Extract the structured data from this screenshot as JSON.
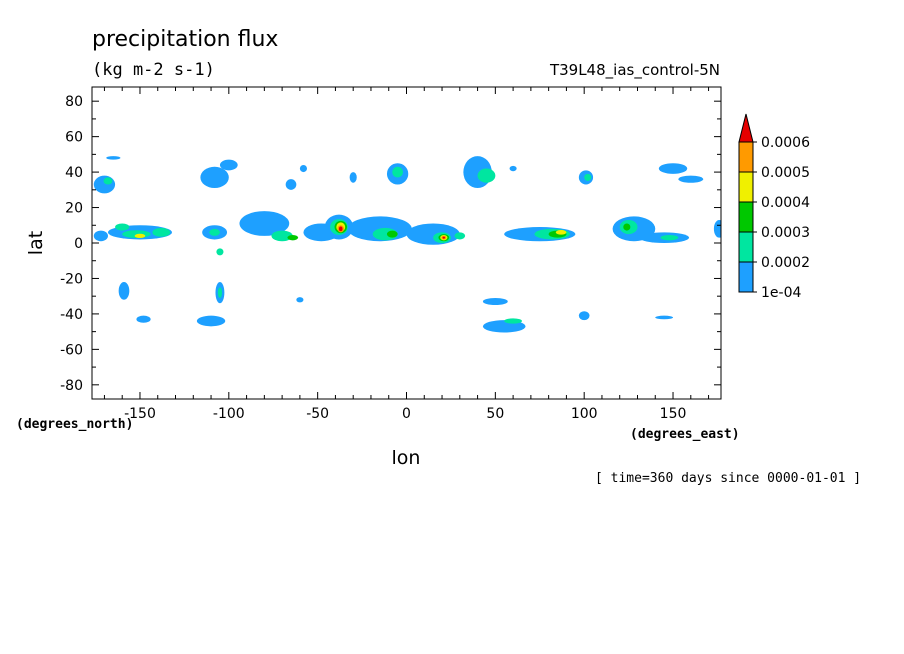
{
  "chart_data": {
    "type": "heatmap",
    "title": "precipitation flux",
    "units": "(kg m-2 s-1)",
    "dataset": "T39L48_ias_control-5N",
    "xlabel": "lon",
    "ylabel": "lat",
    "x_units_label": "(degrees_east)",
    "y_units_label": "(degrees_north)",
    "time_label": "[ time=360 days since 0000-01-01 ]",
    "xlim": [
      -177,
      177
    ],
    "ylim": [
      -88,
      88
    ],
    "x_ticks": [
      -150,
      -100,
      -50,
      0,
      50,
      100,
      150
    ],
    "x_tick_labels": [
      "-150",
      "-100",
      "-50",
      "0",
      "50",
      "100",
      "150"
    ],
    "y_ticks": [
      -80,
      -60,
      -40,
      -20,
      0,
      20,
      40,
      60,
      80
    ],
    "y_tick_labels": [
      "-80",
      "-60",
      "-40",
      "-20",
      "0",
      "20",
      "40",
      "60",
      "80"
    ],
    "colorbar": {
      "levels": [
        0.0001,
        0.0002,
        0.0003,
        0.0004,
        0.0005,
        0.0006
      ],
      "labels": [
        "1e-04",
        "0.0002",
        "0.0003",
        "0.0004",
        "0.0005",
        "0.0006"
      ],
      "colors": [
        "#1ea0ff",
        "#00e6a0",
        "#00c800",
        "#f0f000",
        "#ff9a00",
        "#e60000"
      ]
    },
    "regions": [
      {
        "lon": -172,
        "lat": 4,
        "rx": 4,
        "ry": 3,
        "level": 0
      },
      {
        "lon": -150,
        "lat": 6,
        "rx": 18,
        "ry": 4,
        "level": 0
      },
      {
        "lon": -152,
        "lat": 5,
        "rx": 8,
        "ry": 2.2,
        "level": 1
      },
      {
        "lon": -150,
        "lat": 4,
        "rx": 3,
        "ry": 1.2,
        "level": 3
      },
      {
        "lon": -160,
        "lat": 9,
        "rx": 4,
        "ry": 2,
        "level": 1
      },
      {
        "lon": -138,
        "lat": 6,
        "rx": 5,
        "ry": 2.5,
        "level": 1
      },
      {
        "lon": -108,
        "lat": 6,
        "rx": 7,
        "ry": 4,
        "level": 0
      },
      {
        "lon": -108,
        "lat": 6,
        "rx": 3,
        "ry": 2,
        "level": 1
      },
      {
        "lon": -105,
        "lat": -5,
        "rx": 2,
        "ry": 2,
        "level": 1
      },
      {
        "lon": -80,
        "lat": 11,
        "rx": 14,
        "ry": 7,
        "level": 0
      },
      {
        "lon": -70,
        "lat": 4,
        "rx": 6,
        "ry": 3,
        "level": 1
      },
      {
        "lon": -64,
        "lat": 3,
        "rx": 3,
        "ry": 1.5,
        "level": 2
      },
      {
        "lon": -48,
        "lat": 6,
        "rx": 10,
        "ry": 5,
        "level": 0
      },
      {
        "lon": -38,
        "lat": 9,
        "rx": 8,
        "ry": 7,
        "level": 0
      },
      {
        "lon": -38,
        "lat": 9,
        "rx": 5,
        "ry": 4.5,
        "level": 1
      },
      {
        "lon": -37,
        "lat": 9,
        "rx": 3.5,
        "ry": 3.5,
        "level": 2
      },
      {
        "lon": -37,
        "lat": 9,
        "rx": 2.5,
        "ry": 2.6,
        "level": 3
      },
      {
        "lon": -37,
        "lat": 8,
        "rx": 1.8,
        "ry": 2,
        "level": 4
      },
      {
        "lon": -37,
        "lat": 8,
        "rx": 1,
        "ry": 1.3,
        "level": 5
      },
      {
        "lon": -15,
        "lat": 8,
        "rx": 18,
        "ry": 7,
        "level": 0
      },
      {
        "lon": -12,
        "lat": 5,
        "rx": 7,
        "ry": 3.5,
        "level": 1
      },
      {
        "lon": -8,
        "lat": 5,
        "rx": 3,
        "ry": 2,
        "level": 2
      },
      {
        "lon": 15,
        "lat": 5,
        "rx": 15,
        "ry": 6,
        "level": 0
      },
      {
        "lon": 20,
        "lat": 3,
        "rx": 5,
        "ry": 3,
        "level": 1
      },
      {
        "lon": 21,
        "lat": 3,
        "rx": 3,
        "ry": 2,
        "level": 2
      },
      {
        "lon": 21,
        "lat": 3,
        "rx": 2,
        "ry": 1.5,
        "level": 3
      },
      {
        "lon": 21,
        "lat": 3,
        "rx": 1.3,
        "ry": 1,
        "level": 4
      },
      {
        "lon": 21,
        "lat": 3,
        "rx": 0.7,
        "ry": 0.6,
        "level": 5
      },
      {
        "lon": 30,
        "lat": 4,
        "rx": 3,
        "ry": 2,
        "level": 1
      },
      {
        "lon": 75,
        "lat": 5,
        "rx": 20,
        "ry": 4,
        "level": 0
      },
      {
        "lon": 82,
        "lat": 5,
        "rx": 10,
        "ry": 3,
        "level": 1
      },
      {
        "lon": 85,
        "lat": 5,
        "rx": 5,
        "ry": 2,
        "level": 2
      },
      {
        "lon": 87,
        "lat": 6,
        "rx": 3,
        "ry": 1.3,
        "level": 3
      },
      {
        "lon": 128,
        "lat": 8,
        "rx": 12,
        "ry": 7,
        "level": 0
      },
      {
        "lon": 125,
        "lat": 9,
        "rx": 5,
        "ry": 4,
        "level": 1
      },
      {
        "lon": 124,
        "lat": 9,
        "rx": 2,
        "ry": 2,
        "level": 2
      },
      {
        "lon": 145,
        "lat": 3,
        "rx": 14,
        "ry": 3,
        "level": 0
      },
      {
        "lon": 148,
        "lat": 3,
        "rx": 5,
        "ry": 1.5,
        "level": 1
      },
      {
        "lon": 176,
        "lat": 8,
        "rx": 3,
        "ry": 5,
        "level": 0
      },
      {
        "lon": -170,
        "lat": 33,
        "rx": 6,
        "ry": 5,
        "level": 0
      },
      {
        "lon": -168,
        "lat": 35,
        "rx": 2.5,
        "ry": 2,
        "level": 1
      },
      {
        "lon": -165,
        "lat": 48,
        "rx": 4,
        "ry": 1,
        "level": 0
      },
      {
        "lon": -108,
        "lat": 37,
        "rx": 8,
        "ry": 6,
        "level": 0
      },
      {
        "lon": -100,
        "lat": 44,
        "rx": 5,
        "ry": 3,
        "level": 0
      },
      {
        "lon": -65,
        "lat": 33,
        "rx": 3,
        "ry": 3,
        "level": 0
      },
      {
        "lon": -58,
        "lat": 42,
        "rx": 2,
        "ry": 2,
        "level": 0
      },
      {
        "lon": -30,
        "lat": 37,
        "rx": 2,
        "ry": 3,
        "level": 0
      },
      {
        "lon": -5,
        "lat": 39,
        "rx": 6,
        "ry": 6,
        "level": 0
      },
      {
        "lon": -5,
        "lat": 40,
        "rx": 3,
        "ry": 3,
        "level": 1
      },
      {
        "lon": 40,
        "lat": 40,
        "rx": 8,
        "ry": 9,
        "level": 0
      },
      {
        "lon": 45,
        "lat": 38,
        "rx": 5,
        "ry": 4,
        "level": 1
      },
      {
        "lon": 60,
        "lat": 42,
        "rx": 2,
        "ry": 1.5,
        "level": 0
      },
      {
        "lon": 101,
        "lat": 37,
        "rx": 4,
        "ry": 4,
        "level": 0
      },
      {
        "lon": 102,
        "lat": 37,
        "rx": 2,
        "ry": 2,
        "level": 1
      },
      {
        "lon": 150,
        "lat": 42,
        "rx": 8,
        "ry": 3,
        "level": 0
      },
      {
        "lon": 160,
        "lat": 36,
        "rx": 7,
        "ry": 2,
        "level": 0
      },
      {
        "lon": -159,
        "lat": -27,
        "rx": 3,
        "ry": 5,
        "level": 0
      },
      {
        "lon": -148,
        "lat": -43,
        "rx": 4,
        "ry": 2,
        "level": 0
      },
      {
        "lon": -105,
        "lat": -28,
        "rx": 2.5,
        "ry": 6,
        "level": 0
      },
      {
        "lon": -105,
        "lat": -28,
        "rx": 1.2,
        "ry": 3,
        "level": 1
      },
      {
        "lon": -110,
        "lat": -44,
        "rx": 8,
        "ry": 3,
        "level": 0
      },
      {
        "lon": -60,
        "lat": -32,
        "rx": 2,
        "ry": 1.5,
        "level": 0
      },
      {
        "lon": 50,
        "lat": -33,
        "rx": 7,
        "ry": 2,
        "level": 0
      },
      {
        "lon": 55,
        "lat": -47,
        "rx": 12,
        "ry": 3.5,
        "level": 0
      },
      {
        "lon": 60,
        "lat": -44,
        "rx": 5,
        "ry": 1.5,
        "level": 1
      },
      {
        "lon": 100,
        "lat": -41,
        "rx": 3,
        "ry": 2.5,
        "level": 0
      },
      {
        "lon": 145,
        "lat": -42,
        "rx": 5,
        "ry": 1,
        "level": 0
      }
    ]
  }
}
